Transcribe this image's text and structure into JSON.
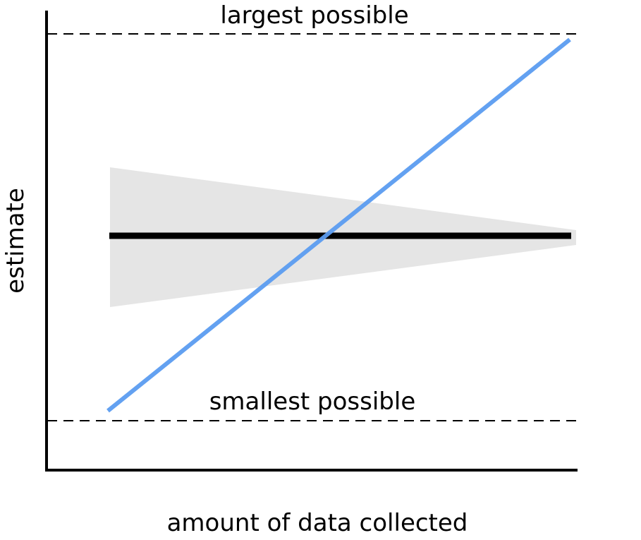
{
  "diagram": {
    "xlabel": "amount of data collected",
    "ylabel": "estimate",
    "upper_bound_label": "largest possible",
    "lower_bound_label": "smallest possible"
  },
  "colors": {
    "axis": "#000000",
    "bound_line": "#000000",
    "band_fill": "#e5e5e5",
    "constant_estimate": "#000000",
    "rising_estimate": "#5b9cf0"
  }
}
